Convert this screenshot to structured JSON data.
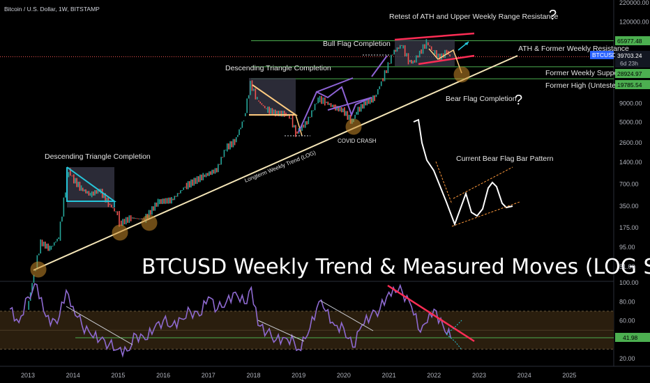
{
  "header": {
    "symbol_title": "Bitcoin / U.S. Dollar, 1W, BITSTAMP"
  },
  "price_axis": {
    "ticks": [
      "220000.00",
      "120000.00",
      "65977.48",
      "39703.24",
      "6d 23h",
      "28924.97",
      "19785.54",
      "9000.00",
      "5000.00",
      "2600.00",
      "1400.00",
      "700.00",
      "350.00",
      "175.00",
      "95.00",
      "51.00"
    ]
  },
  "rsi_axis": {
    "ticks": [
      "100.00",
      "80.00",
      "60.00",
      "41.98",
      "20.00"
    ]
  },
  "time_axis": {
    "ticks": [
      "2013",
      "2014",
      "2015",
      "2016",
      "2017",
      "2018",
      "2019",
      "2020",
      "2021",
      "2022",
      "2023",
      "2024",
      "2025"
    ]
  },
  "badges": {
    "ath_price": "65977.48",
    "current_symbol": "BTCUSD",
    "current_price": "39703.24",
    "countdown": "6d 23h",
    "support_price": "28924.97",
    "former_high_price": "19785.54",
    "rsi_value": "41.98"
  },
  "annotations": {
    "retest_ath": "Retest of ATH and Upper Weekly Range Resistance",
    "bull_flag": "Bull Flag Completion",
    "ath_resistance": "ATH & Former Weekly Resistance",
    "former_support": "Former Weekly Support",
    "former_high": "Former High (Untested)",
    "bear_flag": "Bear Flag Completion",
    "desc_triangle_2018": "Descending Triangle Completion",
    "desc_triangle_2014": "Descending Triangle Completion",
    "covid_crash": "COVID CRASH",
    "trendline_label": "Longterm Weekly Trend (LOG)",
    "current_bear_flag": "Current Bear Flag Bar Pattern",
    "qmark": "?",
    "main_title": "BTCUSD Weekly Trend & Measured Moves (LOG Scale)"
  },
  "colors": {
    "background": "#000000",
    "candle_up": "#26a69a",
    "candle_down": "#ef5350",
    "price_line": "#ef5350",
    "rsi_line": "#8e6ad1",
    "green_level": "#4caf50",
    "trendline": "#f5e6b8",
    "triangle_cyan": "#26c6da",
    "flag_purple": "#8e63d6",
    "flag_red": "#ff2d55",
    "triangle_orange": "#ffcc80",
    "circle_fill": "#c88a2a",
    "rsi_band": "#2a1e0e"
  },
  "chart_data": [
    {
      "type": "line",
      "title": "BTCUSD Weekly Trend & Measured Moves (LOG Scale)",
      "log_scale": true,
      "ylim": [
        30,
        220000
      ],
      "y_ticks": [
        51,
        95,
        175,
        350,
        700,
        1400,
        2600,
        5000,
        9000,
        19785.54,
        28924.97,
        39703.24,
        65977.48,
        120000,
        220000
      ],
      "x_ticks": [
        "2013",
        "2014",
        "2015",
        "2016",
        "2017",
        "2018",
        "2019",
        "2020",
        "2021",
        "2022",
        "2023",
        "2024",
        "2025"
      ],
      "series": [
        {
          "x": [
            2013.0,
            2013.15,
            2013.3,
            2013.5,
            2013.7,
            2013.85,
            2013.92,
            2014.0,
            2014.2,
            2014.4,
            2014.6,
            2014.8,
            2015.0,
            2015.05,
            2015.3,
            2015.6,
            2015.9,
            2016.2,
            2016.5,
            2016.9,
            2017.2,
            2017.4,
            2017.6,
            2017.8,
            2017.95,
            2018.1,
            2018.3,
            2018.5,
            2018.7,
            2018.85,
            2018.95,
            2019.2,
            2019.45,
            2019.6,
            2019.8,
            2020.0,
            2020.2,
            2020.3,
            2020.5,
            2020.7,
            2020.85,
            2021.0,
            2021.1,
            2021.3,
            2021.45,
            2021.55,
            2021.7,
            2021.85,
            2022.0,
            2022.15,
            2022.3,
            2022.37
          ],
          "values": [
            13,
            40,
            110,
            90,
            130,
            600,
            1100,
            850,
            600,
            500,
            580,
            380,
            270,
            200,
            240,
            230,
            400,
            420,
            650,
            900,
            1100,
            2200,
            2700,
            5500,
            17000,
            10000,
            7500,
            6600,
            6500,
            5500,
            3500,
            5000,
            10500,
            9500,
            8000,
            7200,
            5000,
            7000,
            9300,
            10800,
            18000,
            30000,
            45000,
            58000,
            35000,
            33000,
            45000,
            62000,
            47000,
            38000,
            47000,
            39703
          ]
        }
      ],
      "levels": [
        65977.48,
        39703.24,
        28924.97,
        19785.54
      ],
      "annotations": [
        "Retest of ATH and Upper Weekly Range Resistance",
        "Bull Flag Completion",
        "ATH & Former Weekly Resistance",
        "Former Weekly Support",
        "Former High (Untested)",
        "Bear Flag Completion",
        "Descending Triangle Completion",
        "Descending Triangle Completion",
        "COVID CRASH",
        "Longterm Weekly Trend (LOG)",
        "Current Bear Flag Bar Pattern"
      ]
    },
    {
      "type": "line",
      "title": "",
      "ylim": [
        15,
        100
      ],
      "y_ticks": [
        20,
        41.98,
        60,
        80,
        100
      ],
      "series": [
        {
          "x": [
            2012.6,
            2012.8,
            2013.0,
            2013.2,
            2013.35,
            2013.5,
            2013.7,
            2013.85,
            2014.0,
            2014.2,
            2014.4,
            2014.6,
            2014.8,
            2015.0,
            2015.2,
            2015.4,
            2015.6,
            2015.8,
            2016.0,
            2016.2,
            2016.4,
            2016.6,
            2016.8,
            2017.0,
            2017.2,
            2017.4,
            2017.6,
            2017.8,
            2017.95,
            2018.1,
            2018.3,
            2018.5,
            2018.7,
            2018.9,
            2019.0,
            2019.2,
            2019.45,
            2019.6,
            2019.8,
            2020.0,
            2020.2,
            2020.4,
            2020.6,
            2020.8,
            2020.95,
            2021.1,
            2021.3,
            2021.5,
            2021.7,
            2021.85,
            2022.0,
            2022.2,
            2022.37
          ],
          "values": [
            72,
            58,
            85,
            98,
            70,
            55,
            65,
            92,
            75,
            55,
            45,
            40,
            35,
            30,
            28,
            45,
            40,
            52,
            60,
            55,
            62,
            70,
            65,
            85,
            72,
            80,
            90,
            78,
            95,
            55,
            48,
            40,
            42,
            38,
            30,
            45,
            80,
            70,
            55,
            52,
            32,
            55,
            65,
            72,
            85,
            95,
            90,
            75,
            48,
            58,
            72,
            55,
            42
          ],
          "name": ""
        }
      ]
    }
  ]
}
